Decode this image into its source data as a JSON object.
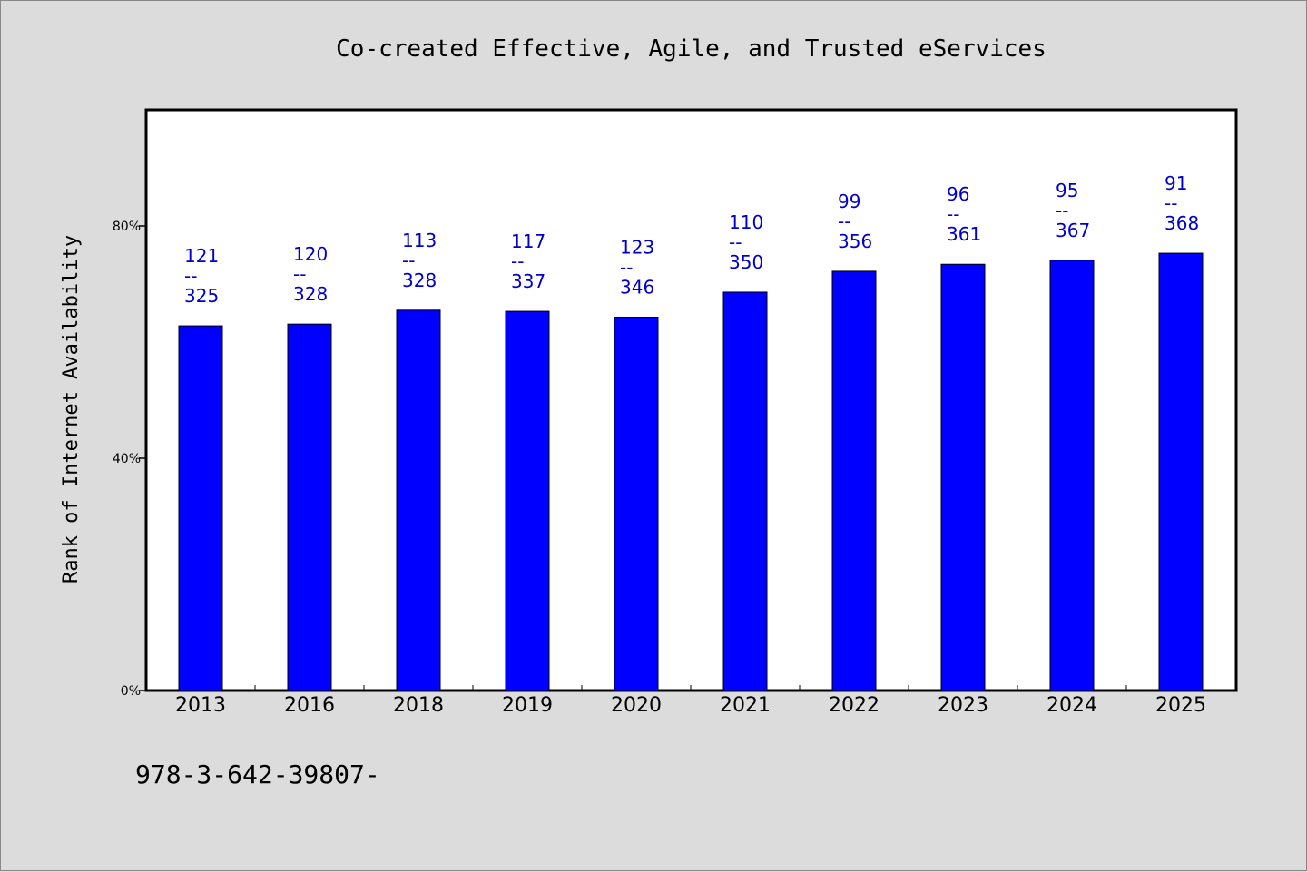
{
  "chart_data": {
    "type": "bar",
    "title": "Co-created Effective, Agile, and Trusted eServices",
    "xlabel": "",
    "ylabel": "Rank of Internet Availability",
    "categories": [
      "2013",
      "2016",
      "2018",
      "2019",
      "2020",
      "2021",
      "2022",
      "2023",
      "2024",
      "2025"
    ],
    "series": [
      {
        "values": [
          62.8,
          63.1,
          65.5,
          65.3,
          64.3,
          68.6,
          72.2,
          73.4,
          74.1,
          75.3
        ],
        "labels": [
          [
            "121",
            "--",
            "325"
          ],
          [
            "120",
            "--",
            "328"
          ],
          [
            "113",
            "--",
            "328"
          ],
          [
            "117",
            "--",
            "337"
          ],
          [
            "123",
            "--",
            "346"
          ],
          [
            "110",
            "--",
            "350"
          ],
          [
            "99",
            "--",
            "356"
          ],
          [
            "96",
            "--",
            "361"
          ],
          [
            "95",
            "--",
            "367"
          ],
          [
            "91",
            "--",
            "368"
          ]
        ]
      }
    ],
    "ylim": [
      0,
      100
    ],
    "yticks": [
      0,
      40,
      80
    ],
    "ytick_labels": [
      "0%",
      "40%",
      "80%"
    ],
    "grid": false,
    "colors": {
      "bar": "#0000ff",
      "label": "#0000cc",
      "background": "#dcdcdc",
      "plot_background": "#ffffff"
    }
  },
  "footnote": "978-3-642-39807-"
}
